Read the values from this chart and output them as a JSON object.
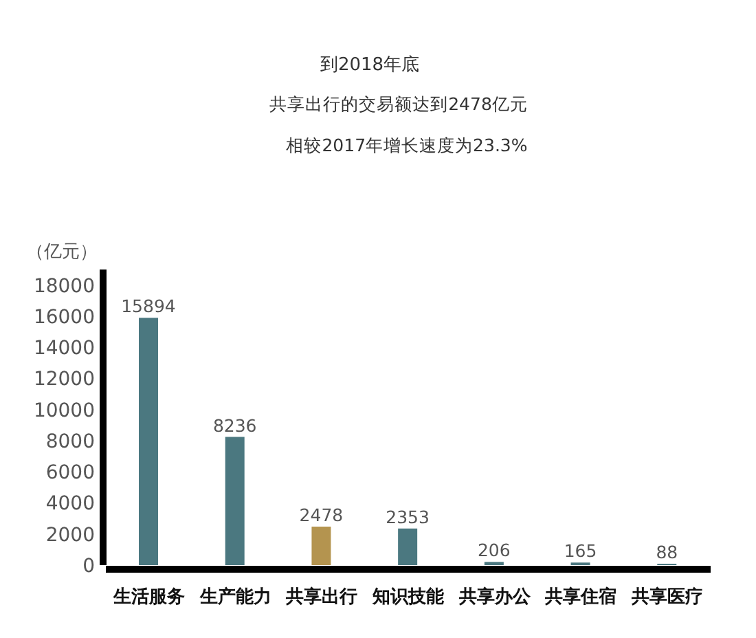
{
  "chart_data": {
    "type": "bar",
    "title": "到2018年底",
    "subtitle": "共享出行的交易额达到2478亿元",
    "annotations": [
      "相较2017年增长速度为23.3%"
    ],
    "ylabel": "（亿元）",
    "categories": [
      "生活服务",
      "生产能力",
      "共享出行",
      "知识技能",
      "共享办公",
      "共享住宿",
      "共享医疗"
    ],
    "values": [
      15894,
      8236,
      2478,
      2353,
      206,
      165,
      88
    ],
    "colors": [
      "#4b7880",
      "#4b7880",
      "#b4944f",
      "#4b7880",
      "#4b7880",
      "#4b7880",
      "#4b7880"
    ],
    "ylim": [
      0,
      19000
    ],
    "yticks": [
      0,
      2000,
      4000,
      6000,
      8000,
      10000,
      12000,
      14000,
      16000,
      18000
    ],
    "data_labels": true
  }
}
